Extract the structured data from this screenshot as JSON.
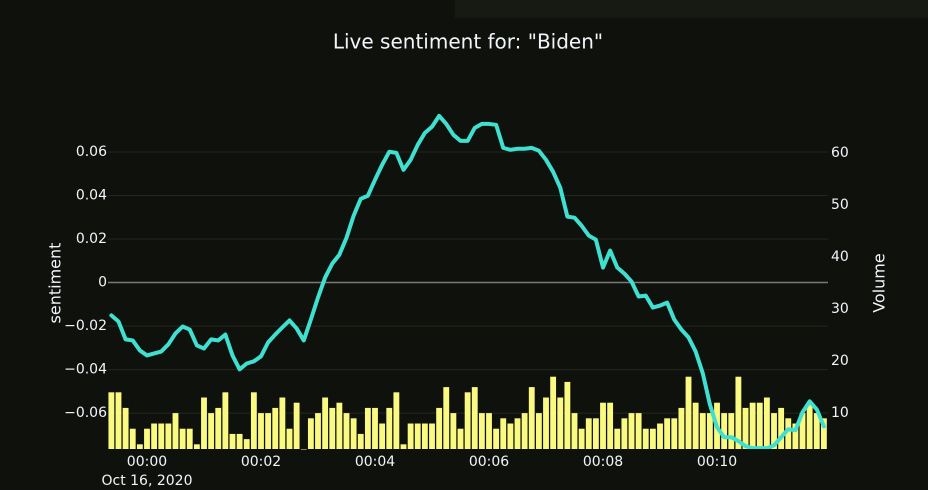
{
  "chart_data": {
    "type": "combo",
    "title": "Live sentiment for: \"Biden\"",
    "y_label": "sentiment",
    "y2_label": "Volume",
    "x_date_label": "Oct 16, 2020",
    "x": [
      -0.625,
      -0.5,
      -0.375,
      -0.25,
      -0.125,
      0,
      0.125,
      0.25,
      0.375,
      0.5,
      0.625,
      0.75,
      0.875,
      1,
      1.125,
      1.25,
      1.375,
      1.5,
      1.625,
      1.75,
      1.875,
      2,
      2.125,
      2.25,
      2.375,
      2.5,
      2.625,
      2.75,
      2.875,
      3,
      3.125,
      3.25,
      3.375,
      3.5,
      3.625,
      3.75,
      3.875,
      4,
      4.125,
      4.25,
      4.375,
      4.5,
      4.625,
      4.75,
      4.875,
      5,
      5.125,
      5.25,
      5.375,
      5.5,
      5.625,
      5.75,
      5.875,
      6,
      6.125,
      6.25,
      6.375,
      6.5,
      6.625,
      6.75,
      6.875,
      7,
      7.125,
      7.25,
      7.375,
      7.5,
      7.625,
      7.75,
      7.875,
      8,
      8.125,
      8.25,
      8.375,
      8.5,
      8.625,
      8.75,
      8.875,
      9,
      9.125,
      9.25,
      9.375,
      9.5,
      9.625,
      9.75,
      9.875,
      10,
      10.125,
      10.25,
      10.375,
      10.5,
      10.625,
      10.75,
      10.875,
      11,
      11.125,
      11.25,
      11.375,
      11.5,
      11.625,
      11.75,
      11.875
    ],
    "xlim": [
      -0.684,
      11.947
    ],
    "xticks": [
      {
        "value": 0,
        "label": "00:00"
      },
      {
        "value": 2,
        "label": "00:02"
      },
      {
        "value": 4,
        "label": "00:04"
      },
      {
        "value": 6,
        "label": "00:06"
      },
      {
        "value": 8,
        "label": "00:08"
      },
      {
        "value": 10,
        "label": "00:10"
      }
    ],
    "ylim": [
      -0.0765,
      0.0839
    ],
    "yticks": [
      {
        "value": -0.06,
        "label": "−0.06"
      },
      {
        "value": -0.04,
        "label": "−0.04"
      },
      {
        "value": -0.02,
        "label": "−0.02"
      },
      0,
      0.02,
      0.04,
      0.06
    ],
    "y2lim": [
      3.1,
      70.2
    ],
    "y2ticks": [
      10,
      20,
      30,
      40,
      50,
      60
    ],
    "grid": true,
    "series": [
      {
        "type": "line",
        "color": "#40e0d0",
        "values": [
          -0.0151,
          -0.0179,
          -0.0261,
          -0.0266,
          -0.0312,
          -0.0335,
          -0.0326,
          -0.0317,
          -0.0284,
          -0.0234,
          -0.0202,
          -0.0216,
          -0.0289,
          -0.0303,
          -0.0261,
          -0.0266,
          -0.0239,
          -0.0335,
          -0.0399,
          -0.0372,
          -0.0362,
          -0.0339,
          -0.0275,
          -0.0239,
          -0.0206,
          -0.0174,
          -0.0211,
          -0.0266,
          -0.017,
          -0.0069,
          0.0023,
          0.0087,
          0.0128,
          0.0206,
          0.0307,
          0.0385,
          0.0399,
          0.0472,
          0.0541,
          0.0601,
          0.0596,
          0.0518,
          0.0564,
          0.0633,
          0.0688,
          0.0716,
          0.0766,
          0.0729,
          0.0679,
          0.0651,
          0.0651,
          0.0711,
          0.0729,
          0.0729,
          0.0725,
          0.0619,
          0.061,
          0.0615,
          0.0615,
          0.0619,
          0.0606,
          0.0564,
          0.0509,
          0.0436,
          0.0303,
          0.0298,
          0.0261,
          0.0216,
          0.0197,
          0.0069,
          0.0147,
          0.0069,
          0.0041,
          0.0005,
          -0.0064,
          -0.006,
          -0.0115,
          -0.0106,
          -0.0092,
          -0.017,
          -0.0216,
          -0.0252,
          -0.0317,
          -0.0417,
          -0.056,
          -0.0665,
          -0.0711,
          -0.0711,
          -0.0729,
          -0.0752,
          -0.0761,
          -0.0761,
          -0.0761,
          -0.0748,
          -0.0711,
          -0.0674,
          -0.0679,
          -0.0596,
          -0.0546,
          -0.0583,
          -0.0661
        ]
      },
      {
        "type": "bar",
        "axis": "y2",
        "color": "#fafa82",
        "values": [
          14,
          14,
          11,
          7,
          4,
          7,
          8,
          8,
          8,
          10,
          7,
          7,
          4,
          13,
          10,
          11,
          14,
          6,
          6,
          5,
          14,
          10,
          10,
          11,
          13,
          7,
          12,
          3,
          9,
          10,
          13,
          11,
          12,
          10,
          9,
          6,
          11,
          11,
          8,
          11,
          14,
          4,
          8,
          8,
          8,
          8,
          11,
          15,
          10,
          7,
          14,
          15,
          10,
          10,
          7,
          9,
          8,
          9,
          10,
          15,
          10,
          13,
          17,
          13,
          16,
          10,
          7,
          9,
          9,
          12,
          12,
          7,
          9,
          10,
          10,
          7,
          7,
          8,
          9,
          9,
          11,
          17,
          12,
          10,
          10,
          12,
          10,
          10,
          17,
          11,
          12,
          12,
          13,
          10,
          11,
          9,
          8,
          10,
          12,
          10,
          9
        ]
      }
    ]
  }
}
